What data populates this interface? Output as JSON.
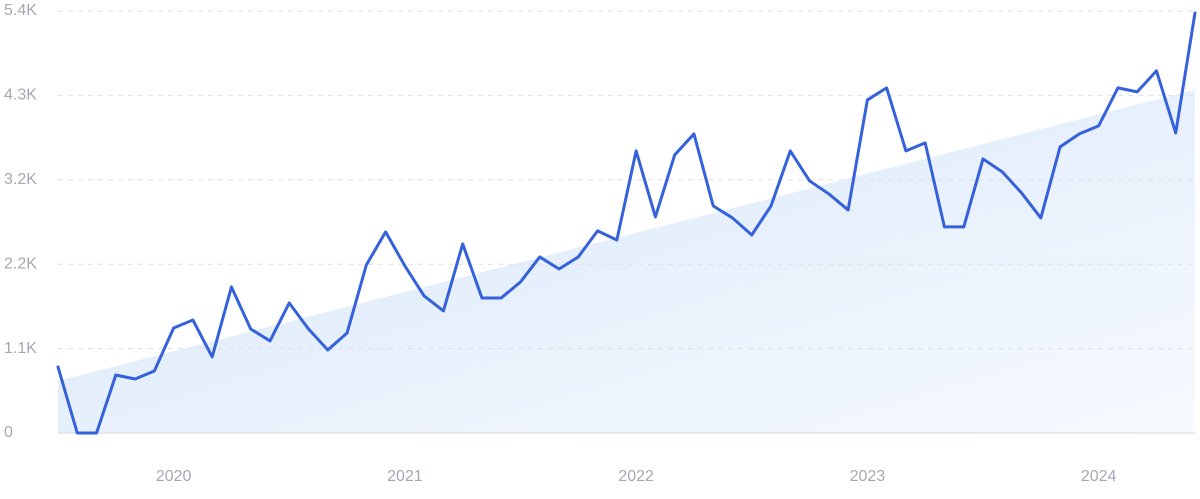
{
  "chart_data": {
    "type": "line",
    "x": [
      2019.5,
      2019.5833,
      2019.6667,
      2019.75,
      2019.8333,
      2019.9167,
      2020,
      2020.0833,
      2020.1667,
      2020.25,
      2020.3333,
      2020.4167,
      2020.5,
      2020.5833,
      2020.6667,
      2020.75,
      2020.8333,
      2020.9167,
      2021,
      2021.0833,
      2021.1667,
      2021.25,
      2021.3333,
      2021.4167,
      2021.5,
      2021.5833,
      2021.6667,
      2021.75,
      2021.8333,
      2021.9167,
      2022,
      2022.0833,
      2022.1667,
      2022.25,
      2022.3333,
      2022.4167,
      2022.5,
      2022.5833,
      2022.6667,
      2022.75,
      2022.8333,
      2022.9167,
      2023,
      2023.0833,
      2023.1667,
      2023.25,
      2023.3333,
      2023.4167,
      2023.5,
      2023.5833,
      2023.6667,
      2023.75,
      2023.8333,
      2023.9167,
      2024,
      2024.0833,
      2024.1667,
      2024.25,
      2024.3333,
      2024.4167
    ],
    "values": [
      845,
      0,
      0,
      742,
      691,
      794,
      1344,
      1446,
      973,
      1869,
      1331,
      1178,
      1664,
      1331,
      1062,
      1280,
      2150,
      2573,
      2138,
      1754,
      1562,
      2419,
      1728,
      1728,
      1933,
      2253,
      2099,
      2253,
      2586,
      2470,
      3610,
      2765,
      3558,
      3827,
      2906,
      2752,
      2534,
      2906,
      3610,
      3226,
      3059,
      2854,
      4262,
      4416,
      3610,
      3712,
      2637,
      2637,
      3507,
      3341,
      3072,
      2752,
      3661,
      3827,
      3930,
      4416,
      4365,
      4634,
      3840,
      5376
    ],
    "color": "#3561db",
    "xlim": [
      2019.5,
      2024.4167
    ],
    "xticks": [
      2020,
      2021,
      2022,
      2023,
      2024
    ],
    "ylim": [
      0,
      5400
    ],
    "yticks": [
      0,
      {
        "value": 1080,
        "label": "1.1K"
      },
      {
        "value": 2160,
        "label": "2.2K"
      },
      {
        "value": 3240,
        "label": "3.2K"
      },
      {
        "value": 4320,
        "label": "4.3K"
      },
      {
        "value": 5400,
        "label": "5.4K"
      }
    ],
    "grid": true
  }
}
